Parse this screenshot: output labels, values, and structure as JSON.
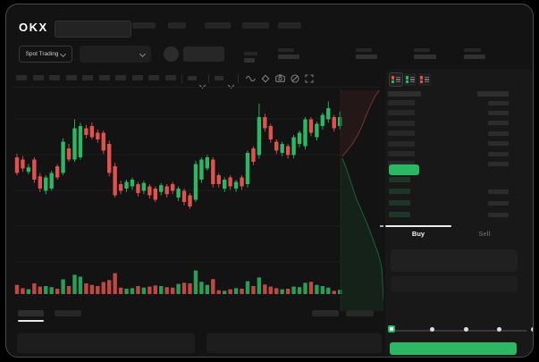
{
  "header": {
    "logo": "OKX"
  },
  "market": {
    "label": "Spot Trading"
  },
  "order_form": {
    "tabs": [
      {
        "label": "Buy",
        "active": true
      },
      {
        "label": "Sell",
        "active": false
      }
    ],
    "slider_percent": 0
  },
  "colors": {
    "green": "#2bb865",
    "red": "#e0514f",
    "bid_row": "#1e3527",
    "window_bg": "#131313",
    "panel_bg": "#181818",
    "skeleton": "#2b2b2b",
    "grid": "#1d1d1d"
  },
  "icons": {
    "toolbar": [
      "wave-icon",
      "diamond-icon",
      "camera-icon",
      "slash-circle-icon",
      "expand-icon"
    ],
    "orderbook_modes": [
      "book-all-icon",
      "book-bids-icon",
      "book-asks-icon"
    ]
  },
  "skeleton_counts": {
    "nav_pills": 5,
    "stat_groups": 5,
    "interval_buttons": 10,
    "ask_rows": 7,
    "bid_rows": 4,
    "slider_dots": 5,
    "form_fields": 2,
    "bottom_tabs": 2
  },
  "chart_data": {
    "type": "candlestick",
    "note": "no numeric axis labels visible; values are relative 0-100 price scale read from pixels",
    "ylim": [
      0,
      100
    ],
    "grid": true,
    "candles_ohlc": [
      [
        48,
        51,
        32,
        34
      ],
      [
        46,
        49,
        35,
        38
      ],
      [
        35,
        42,
        33,
        39
      ],
      [
        46,
        48,
        25,
        28
      ],
      [
        31,
        34,
        17,
        20
      ],
      [
        18,
        32,
        15,
        30
      ],
      [
        20,
        36,
        18,
        34
      ],
      [
        40,
        42,
        28,
        30
      ],
      [
        34,
        65,
        32,
        62
      ],
      [
        56,
        60,
        44,
        46
      ],
      [
        46,
        82,
        44,
        74
      ],
      [
        48,
        79,
        46,
        76
      ],
      [
        74,
        77,
        65,
        68
      ],
      [
        76,
        79,
        64,
        66
      ],
      [
        70,
        73,
        61,
        64
      ],
      [
        70,
        72,
        51,
        54
      ],
      [
        60,
        63,
        31,
        34
      ],
      [
        40,
        43,
        12,
        14
      ],
      [
        24,
        27,
        15,
        18
      ],
      [
        20,
        28,
        17,
        26
      ],
      [
        22,
        30,
        19,
        28
      ],
      [
        24,
        26,
        13,
        16
      ],
      [
        18,
        27,
        15,
        25
      ],
      [
        22,
        24,
        11,
        14
      ],
      [
        20,
        22,
        8,
        10
      ],
      [
        17,
        25,
        14,
        23
      ],
      [
        22,
        24,
        12,
        15
      ],
      [
        24,
        26,
        15,
        18
      ],
      [
        12,
        22,
        9,
        20
      ],
      [
        18,
        20,
        5,
        8
      ],
      [
        14,
        16,
        2,
        4
      ],
      [
        10,
        45,
        8,
        42
      ],
      [
        28,
        48,
        25,
        46
      ],
      [
        38,
        50,
        36,
        48
      ],
      [
        46,
        48,
        21,
        24
      ],
      [
        32,
        34,
        21,
        24
      ],
      [
        20,
        30,
        17,
        28
      ],
      [
        30,
        32,
        19,
        22
      ],
      [
        20,
        28,
        17,
        26
      ],
      [
        30,
        32,
        19,
        22
      ],
      [
        24,
        54,
        21,
        52
      ],
      [
        56,
        58,
        41,
        44
      ],
      [
        50,
        96,
        47,
        84
      ],
      [
        84,
        87,
        71,
        74
      ],
      [
        76,
        78,
        61,
        64
      ],
      [
        62,
        64,
        51,
        54
      ],
      [
        52,
        62,
        49,
        60
      ],
      [
        58,
        60,
        47,
        50
      ],
      [
        50,
        68,
        47,
        66
      ],
      [
        60,
        72,
        57,
        70
      ],
      [
        58,
        84,
        55,
        82
      ],
      [
        82,
        84,
        67,
        70
      ],
      [
        66,
        80,
        63,
        78
      ],
      [
        76,
        88,
        73,
        86
      ],
      [
        82,
        98,
        79,
        92
      ],
      [
        84,
        86,
        71,
        74
      ],
      [
        76,
        89,
        73,
        84
      ]
    ],
    "volumes": [
      34,
      22,
      18,
      40,
      28,
      30,
      26,
      20,
      55,
      30,
      72,
      65,
      40,
      34,
      30,
      45,
      52,
      78,
      24,
      20,
      22,
      30,
      24,
      28,
      32,
      30,
      26,
      24,
      38,
      42,
      40,
      88,
      46,
      34,
      56,
      14,
      12,
      18,
      22,
      20,
      48,
      30,
      62,
      36,
      28,
      22,
      18,
      20,
      28,
      26,
      42,
      46,
      34,
      30,
      24,
      12,
      16
    ],
    "depth": {
      "asks_curve": [
        [
          0.9,
          0.008
        ],
        [
          0.79,
          0.04
        ],
        [
          0.69,
          0.08
        ],
        [
          0.6,
          0.12
        ],
        [
          0.52,
          0.16
        ],
        [
          0.4,
          0.21
        ],
        [
          0.27,
          0.25
        ],
        [
          0.15,
          0.28
        ],
        [
          0.04,
          0.305
        ]
      ],
      "bids_curve": [
        [
          0.04,
          0.313
        ],
        [
          0.125,
          0.353
        ],
        [
          0.21,
          0.402
        ],
        [
          0.29,
          0.45
        ],
        [
          0.375,
          0.498
        ],
        [
          0.5,
          0.554
        ],
        [
          0.625,
          0.61
        ],
        [
          0.75,
          0.675
        ],
        [
          0.875,
          0.74
        ],
        [
          0.96,
          0.803
        ],
        [
          1.0,
          0.95
        ]
      ]
    }
  }
}
